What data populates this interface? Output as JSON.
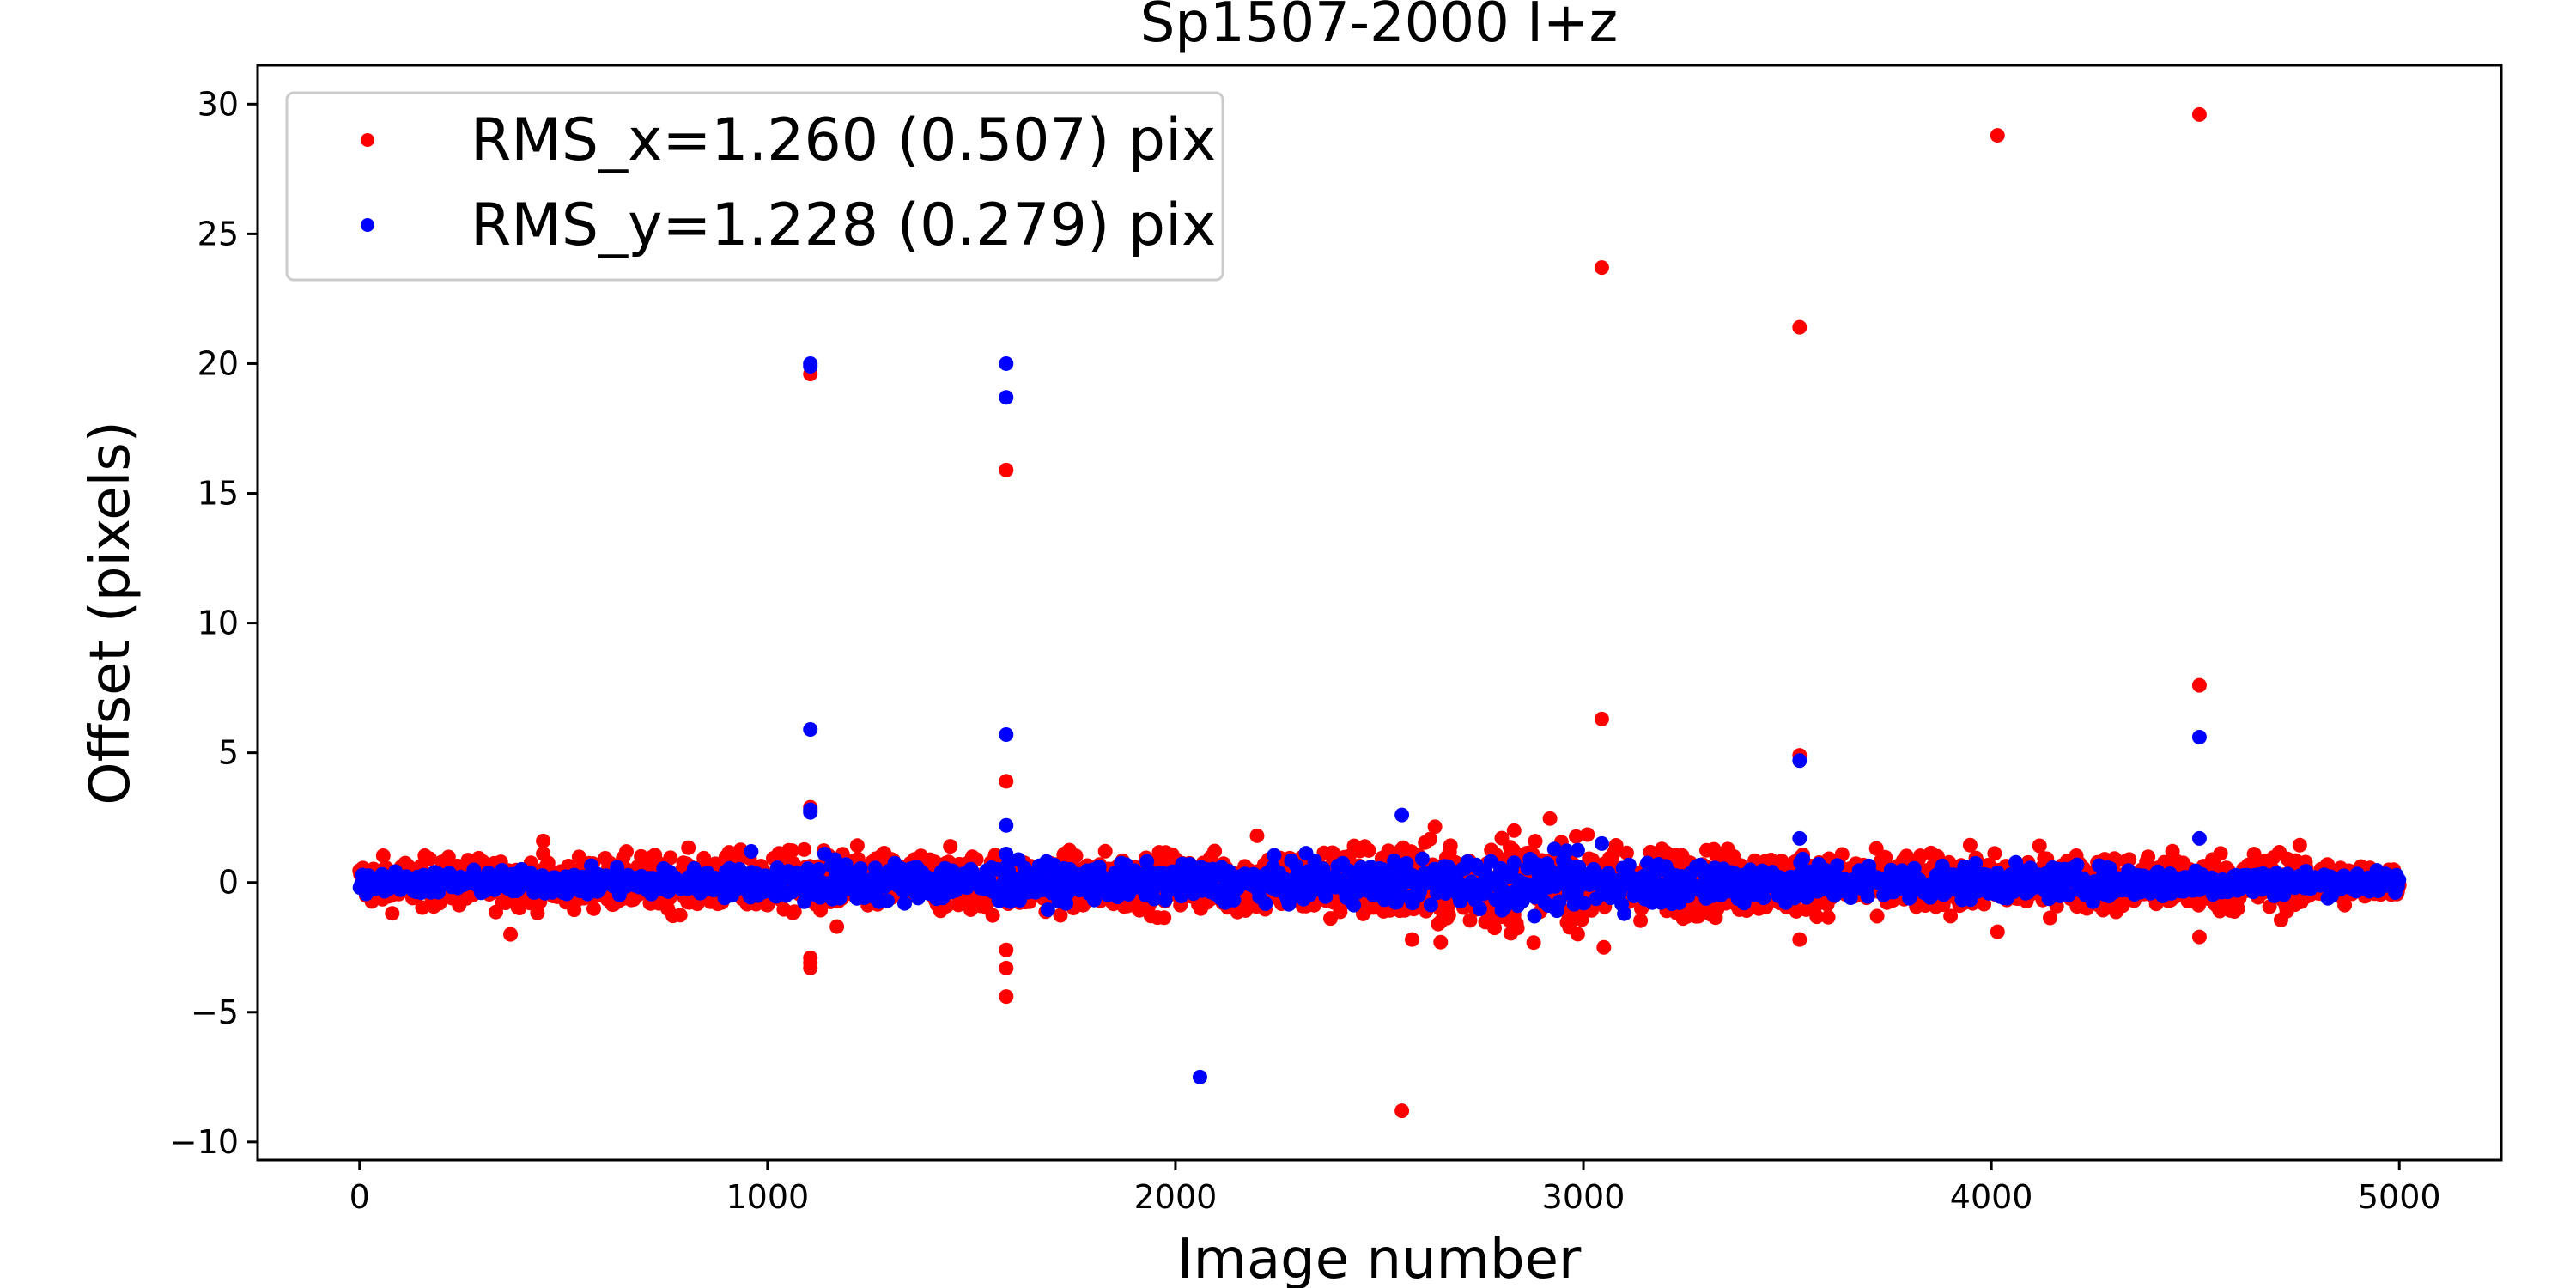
{
  "chart_data": {
    "type": "scatter",
    "title": "Sp1507-2000 I+z",
    "xlabel": "Image number",
    "ylabel": "Offset (pixels)",
    "xlim": [
      -250,
      5250
    ],
    "ylim": [
      -10.7,
      31.5
    ],
    "xticks": [
      0,
      1000,
      2000,
      3000,
      4000,
      5000
    ],
    "xtick_labels": [
      "0",
      "1000",
      "2000",
      "3000",
      "4000",
      "5000"
    ],
    "yticks": [
      30,
      25,
      20,
      15,
      10,
      5,
      0,
      -5,
      -10
    ],
    "ytick_labels": [
      "30",
      "25",
      "20",
      "15",
      "10",
      "5",
      "0",
      "−5",
      "−10"
    ],
    "grid": false,
    "legend_position": "top-left",
    "band": {
      "x_range": [
        0,
        5000
      ],
      "note_x_envelope": [
        [
          0,
          1.0
        ],
        [
          500,
          1.0
        ],
        [
          1100,
          1.3
        ],
        [
          1600,
          1.2
        ],
        [
          2100,
          1.2
        ],
        [
          2600,
          1.8
        ],
        [
          2850,
          2.0
        ],
        [
          3100,
          1.5
        ],
        [
          3600,
          1.2
        ],
        [
          4100,
          1.1
        ],
        [
          4700,
          1.3
        ],
        [
          5000,
          0.6
        ]
      ],
      "note_y_envelope": [
        [
          0,
          0.5
        ],
        [
          1000,
          0.7
        ],
        [
          1100,
          1.0
        ],
        [
          2000,
          0.8
        ],
        [
          2900,
          1.2
        ],
        [
          4000,
          0.8
        ],
        [
          5000,
          0.5
        ]
      ]
    },
    "series": [
      {
        "name": "RMS_x=1.260 (0.507) pix",
        "color": "#ff0000",
        "outliers": [
          [
            1105,
            19.6
          ],
          [
            1105,
            2.9
          ],
          [
            1105,
            -2.9
          ],
          [
            1105,
            -3.1
          ],
          [
            1105,
            -3.3
          ],
          [
            1585,
            15.9
          ],
          [
            1585,
            3.9
          ],
          [
            1585,
            -2.6
          ],
          [
            1585,
            -3.3
          ],
          [
            1585,
            -4.4
          ],
          [
            2555,
            -8.8
          ],
          [
            3045,
            23.7
          ],
          [
            3045,
            6.3
          ],
          [
            3530,
            21.4
          ],
          [
            3530,
            4.9
          ],
          [
            4015,
            28.8
          ],
          [
            4015,
            -1.9
          ],
          [
            4510,
            29.6
          ],
          [
            4510,
            7.6
          ],
          [
            4510,
            -2.1
          ],
          [
            370,
            -2.0
          ],
          [
            450,
            1.6
          ],
          [
            1170,
            -1.7
          ],
          [
            2200,
            1.8
          ],
          [
            2580,
            -2.2
          ],
          [
            2650,
            -2.3
          ],
          [
            2830,
            2.0
          ],
          [
            3050,
            -2.5
          ],
          [
            3530,
            -2.2
          ],
          [
            3720,
            -1.3
          ]
        ]
      },
      {
        "name": "RMS_y=1.228 (0.279) pix",
        "color": "#0000ff",
        "outliers": [
          [
            1105,
            20.0
          ],
          [
            1105,
            19.9
          ],
          [
            1105,
            5.9
          ],
          [
            1105,
            2.8
          ],
          [
            1105,
            2.7
          ],
          [
            1585,
            20.0
          ],
          [
            1585,
            18.7
          ],
          [
            1585,
            5.7
          ],
          [
            1585,
            2.2
          ],
          [
            1585,
            1.1
          ],
          [
            2060,
            -7.5
          ],
          [
            2555,
            2.6
          ],
          [
            3045,
            1.5
          ],
          [
            3530,
            4.7
          ],
          [
            3530,
            1.7
          ],
          [
            4510,
            5.6
          ],
          [
            4510,
            1.7
          ],
          [
            960,
            1.2
          ],
          [
            1140,
            1.1
          ],
          [
            2880,
            -1.3
          ]
        ]
      }
    ]
  }
}
